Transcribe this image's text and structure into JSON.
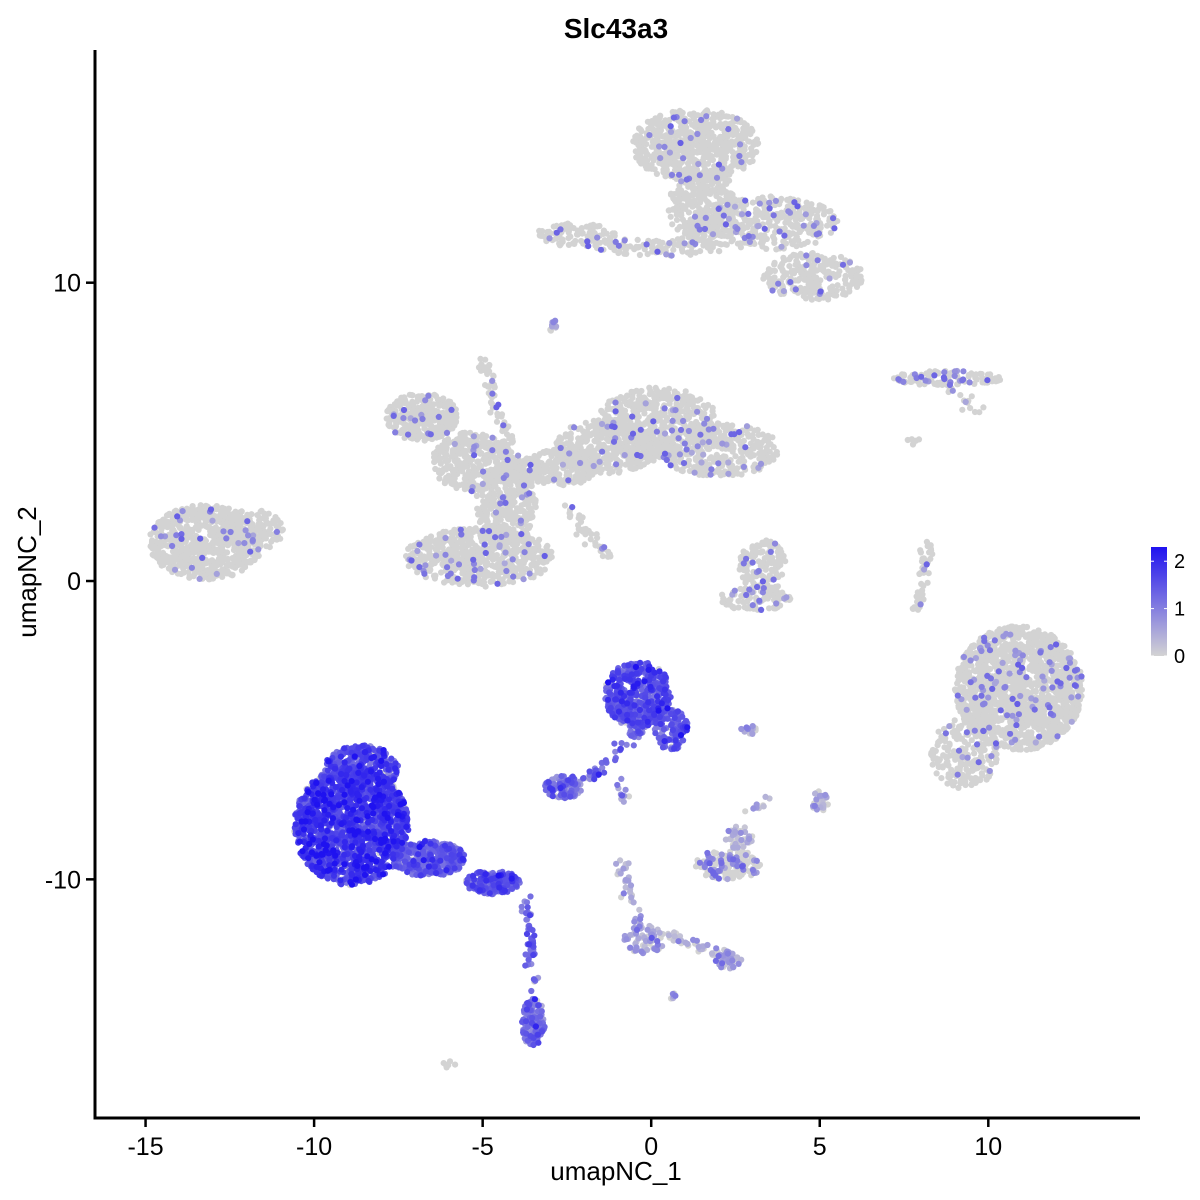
{
  "chart_data": {
    "type": "scatter",
    "title": "Slc43a3",
    "xlabel": "umapNC_1",
    "ylabel": "umapNC_2",
    "xlim": [
      -16.5,
      14.5
    ],
    "ylim": [
      -18.0,
      17.8
    ],
    "x_ticks": [
      -15,
      -10,
      -5,
      0,
      5,
      10
    ],
    "x_tick_labels": [
      "-15",
      "-10",
      "-5",
      "0",
      "5",
      "10"
    ],
    "y_ticks": [
      -10,
      0,
      10
    ],
    "y_tick_labels": [
      "-10",
      "0",
      "10"
    ],
    "grid": false,
    "legend": {
      "placement": "right",
      "type": "colorbar",
      "ticks": [
        0,
        1,
        2
      ],
      "tick_labels": [
        "0",
        "1",
        "2"
      ],
      "range": [
        0,
        2.3
      ],
      "low_color": "#d3d3d3",
      "high_color": "#1f12f0"
    },
    "clusters": [
      {
        "cx": -13.2,
        "cy": 1.3,
        "rx": 1.7,
        "ry": 1.25,
        "n": 700,
        "expr": 0.02
      },
      {
        "cx": -11.8,
        "cy": 1.7,
        "rx": 0.9,
        "ry": 0.7,
        "n": 120,
        "expr": 0.02
      },
      {
        "cx": -6.8,
        "cy": 5.5,
        "rx": 1.1,
        "ry": 0.8,
        "n": 300,
        "expr": 0.02
      },
      {
        "cx": -5.3,
        "cy": 4.0,
        "rx": 1.2,
        "ry": 1.0,
        "n": 350,
        "expr": 0.02
      },
      {
        "cx": -5.1,
        "cy": 0.8,
        "rx": 2.2,
        "ry": 1.0,
        "n": 600,
        "expr": 0.03
      },
      {
        "cx": -4.3,
        "cy": 2.6,
        "rx": 0.9,
        "ry": 1.4,
        "n": 300,
        "expr": 0.02
      },
      {
        "cx": -2.7,
        "cy": 3.8,
        "rx": 1.2,
        "ry": 0.6,
        "n": 250,
        "expr": 0.02
      },
      {
        "cx": -1.3,
        "cy": 4.5,
        "rx": 1.6,
        "ry": 0.9,
        "n": 350,
        "expr": 0.02
      },
      {
        "cx": 0.2,
        "cy": 5.3,
        "rx": 1.8,
        "ry": 1.2,
        "n": 500,
        "expr": 0.02
      },
      {
        "cx": 2.0,
        "cy": 4.4,
        "rx": 1.8,
        "ry": 0.9,
        "n": 350,
        "expr": 0.03
      },
      {
        "cx": 1.3,
        "cy": 14.6,
        "rx": 1.9,
        "ry": 1.2,
        "n": 650,
        "expr": 0.02
      },
      {
        "cx": 1.5,
        "cy": 12.6,
        "rx": 1.0,
        "ry": 1.4,
        "n": 300,
        "expr": 0.02
      },
      {
        "cx": 3.4,
        "cy": 12.0,
        "rx": 2.2,
        "ry": 0.9,
        "n": 400,
        "expr": 0.04
      },
      {
        "cx": 4.8,
        "cy": 10.2,
        "rx": 1.5,
        "ry": 0.8,
        "n": 250,
        "expr": 0.03
      },
      {
        "cx": -2.2,
        "cy": 11.6,
        "rx": 1.2,
        "ry": 0.4,
        "n": 100,
        "expr": 0.03
      },
      {
        "cx": 0.3,
        "cy": 11.2,
        "rx": 2.0,
        "ry": 0.3,
        "n": 100,
        "expr": 0.05
      },
      {
        "cx": 8.8,
        "cy": 6.8,
        "rx": 1.6,
        "ry": 0.25,
        "n": 120,
        "expr": 0.06
      },
      {
        "cx": 3.3,
        "cy": 0.5,
        "rx": 0.7,
        "ry": 0.9,
        "n": 150,
        "expr": 0.03
      },
      {
        "cx": 3.1,
        "cy": -0.6,
        "rx": 1.1,
        "ry": 0.4,
        "n": 100,
        "expr": 0.05
      },
      {
        "cx": 10.9,
        "cy": -3.6,
        "rx": 1.9,
        "ry": 2.1,
        "n": 1500,
        "expr": 0.03
      },
      {
        "cx": 9.3,
        "cy": -5.8,
        "rx": 1.0,
        "ry": 1.2,
        "n": 200,
        "expr": 0.03
      },
      {
        "cx": -0.4,
        "cy": -3.8,
        "rx": 1.0,
        "ry": 1.1,
        "n": 500,
        "expr": 1.45
      },
      {
        "cx": 0.6,
        "cy": -5.0,
        "rx": 0.5,
        "ry": 0.7,
        "n": 120,
        "expr": 1.3
      },
      {
        "cx": -2.6,
        "cy": -6.9,
        "rx": 0.55,
        "ry": 0.4,
        "n": 120,
        "expr": 1.1
      },
      {
        "cx": -8.9,
        "cy": -8.2,
        "rx": 1.7,
        "ry": 2.0,
        "n": 1500,
        "expr": 1.7
      },
      {
        "cx": -8.6,
        "cy": -6.3,
        "rx": 1.1,
        "ry": 0.8,
        "n": 300,
        "expr": 1.55
      },
      {
        "cx": -6.6,
        "cy": -9.3,
        "rx": 1.1,
        "ry": 0.6,
        "n": 350,
        "expr": 1.3
      },
      {
        "cx": -4.7,
        "cy": -10.1,
        "rx": 0.8,
        "ry": 0.4,
        "n": 200,
        "expr": 1.35
      },
      {
        "cx": -3.5,
        "cy": -14.8,
        "rx": 0.35,
        "ry": 0.8,
        "n": 130,
        "expr": 1.05
      },
      {
        "cx": 2.3,
        "cy": -9.5,
        "rx": 1.0,
        "ry": 0.5,
        "n": 150,
        "expr": 0.1
      },
      {
        "cx": 2.6,
        "cy": -8.6,
        "rx": 0.4,
        "ry": 0.4,
        "n": 40,
        "expr": 0.2
      },
      {
        "cx": -0.2,
        "cy": -12.0,
        "rx": 0.6,
        "ry": 0.5,
        "n": 60,
        "expr": 0.45
      },
      {
        "cx": 2.3,
        "cy": -12.7,
        "rx": 0.4,
        "ry": 0.3,
        "n": 40,
        "expr": 0.45
      },
      {
        "cx": 5.0,
        "cy": -7.4,
        "rx": 0.25,
        "ry": 0.35,
        "n": 30,
        "expr": 0.25
      },
      {
        "cx": 2.9,
        "cy": -5.0,
        "rx": 0.3,
        "ry": 0.15,
        "n": 15,
        "expr": 0.6
      },
      {
        "cx": 0.6,
        "cy": -13.9,
        "rx": 0.12,
        "ry": 0.12,
        "n": 6,
        "expr": 0.7
      },
      {
        "cx": -6.0,
        "cy": -16.2,
        "rx": 0.2,
        "ry": 0.12,
        "n": 6,
        "expr": 0.02
      },
      {
        "cx": -2.9,
        "cy": 8.5,
        "rx": 0.12,
        "ry": 0.25,
        "n": 10,
        "expr": 0.3
      }
    ],
    "strands": [
      {
        "from": [
          -5.0,
          7.4
        ],
        "to": [
          -3.5,
          2.0
        ],
        "n": 90,
        "expr": 0.03
      },
      {
        "from": [
          -2.5,
          2.5
        ],
        "to": [
          -1.3,
          0.8
        ],
        "n": 40,
        "expr": 0.04
      },
      {
        "from": [
          8.3,
          1.3
        ],
        "to": [
          7.8,
          -1.0
        ],
        "n": 50,
        "expr": 0.03
      },
      {
        "from": [
          8.8,
          6.5
        ],
        "to": [
          9.7,
          5.7
        ],
        "n": 15,
        "expr": 0.03
      },
      {
        "from": [
          7.5,
          5.0
        ],
        "to": [
          7.8,
          4.5
        ],
        "n": 6,
        "expr": 0.02
      },
      {
        "from": [
          -0.2,
          -4.8
        ],
        "to": [
          -1.9,
          -6.7
        ],
        "n": 60,
        "expr": 1.2
      },
      {
        "from": [
          -3.7,
          -10.6
        ],
        "to": [
          -3.5,
          -13.8
        ],
        "n": 50,
        "expr": 1.1
      },
      {
        "from": [
          -1.0,
          -6.8
        ],
        "to": [
          -0.8,
          -7.4
        ],
        "n": 10,
        "expr": 0.9
      },
      {
        "from": [
          -0.9,
          -9.3
        ],
        "to": [
          -0.3,
          -11.8
        ],
        "n": 40,
        "expr": 0.4
      },
      {
        "from": [
          0.3,
          -11.8
        ],
        "to": [
          2.3,
          -12.6
        ],
        "n": 40,
        "expr": 0.35
      },
      {
        "from": [
          2.8,
          -7.8
        ],
        "to": [
          3.5,
          -7.3
        ],
        "n": 10,
        "expr": 0.2
      }
    ]
  }
}
